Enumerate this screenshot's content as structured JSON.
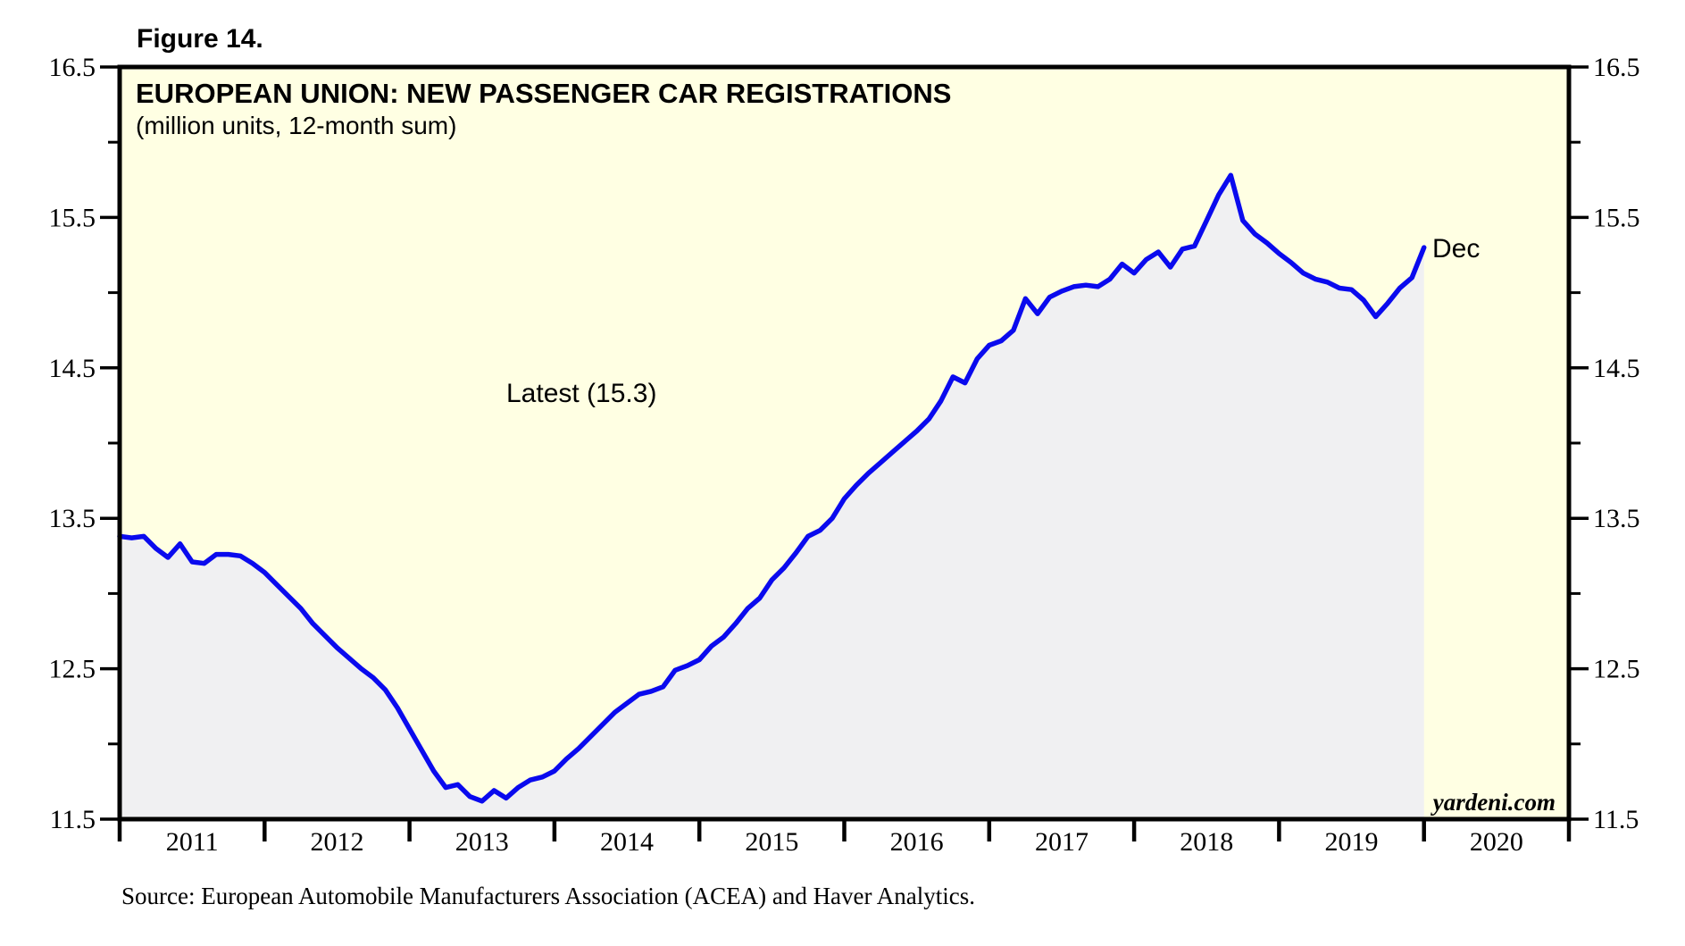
{
  "figure_label": "Figure 14.",
  "chart": {
    "title": "EUROPEAN UNION: NEW PASSENGER CAR REGISTRATIONS",
    "subtitle": "(million units, 12-month sum)",
    "latest_annotation": "Latest (15.3)",
    "endpoint_label": "Dec",
    "watermark": "yardeni.com"
  },
  "source_note": "Source: European Automobile Manufacturers Association (ACEA) and Haver Analytics.",
  "colors": {
    "page_background": "#FFFFFF",
    "above_line_fill": "#FFFFE3",
    "below_line_fill": "#F0F0F2",
    "line": "#0A0AEE",
    "axis": "#000000",
    "tick_label": "#000000",
    "endpoint_label_color": "#0A0AEE"
  },
  "chart_data": {
    "type": "area",
    "title": "EUROPEAN UNION: NEW PASSENGER CAR REGISTRATIONS",
    "series_name": "EU new passenger car registrations, 12-month sum (million units)",
    "first_point": "Dec 2010",
    "last_point": "Dec 2019",
    "latest_value": 15.3,
    "peak_value": 15.78,
    "trough_value": 11.62,
    "x_axis": {
      "start": 2011.0,
      "end": 2021.0,
      "year_labels": [
        "2011",
        "2012",
        "2013",
        "2014",
        "2015",
        "2016",
        "2017",
        "2018",
        "2019",
        "2020"
      ],
      "tick_interval_years": 1
    },
    "y_axis": {
      "min": 11.5,
      "max": 16.5,
      "major_ticks": [
        11.5,
        12.5,
        13.5,
        14.5,
        15.5,
        16.5
      ],
      "major_tick_labels": [
        "11.5",
        "12.5",
        "13.5",
        "14.5",
        "15.5",
        "16.5"
      ],
      "minor_ticks": [
        12.0,
        13.0,
        14.0,
        15.0,
        16.0
      ],
      "labels_on_both_sides": true
    },
    "grid": false,
    "legend": false,
    "monthly_values": [
      13.38,
      13.37,
      13.38,
      13.3,
      13.24,
      13.33,
      13.21,
      13.2,
      13.26,
      13.26,
      13.25,
      13.2,
      13.14,
      13.06,
      12.98,
      12.9,
      12.8,
      12.72,
      12.64,
      12.57,
      12.5,
      12.44,
      12.36,
      12.24,
      12.1,
      11.96,
      11.82,
      11.71,
      11.73,
      11.65,
      11.62,
      11.69,
      11.64,
      11.71,
      11.76,
      11.78,
      11.82,
      11.9,
      11.97,
      12.05,
      12.13,
      12.21,
      12.27,
      12.33,
      12.35,
      12.38,
      12.49,
      12.52,
      12.56,
      12.65,
      12.71,
      12.8,
      12.9,
      12.97,
      13.09,
      13.17,
      13.27,
      13.38,
      13.42,
      13.5,
      13.63,
      13.72,
      13.8,
      13.87,
      13.94,
      14.01,
      14.08,
      14.16,
      14.28,
      14.44,
      14.4,
      14.56,
      14.65,
      14.68,
      14.75,
      14.96,
      14.86,
      14.97,
      15.01,
      15.04,
      15.05,
      15.04,
      15.09,
      15.19,
      15.13,
      15.22,
      15.27,
      15.17,
      15.29,
      15.31,
      15.48,
      15.65,
      15.78,
      15.48,
      15.39,
      15.33,
      15.26,
      15.2,
      15.13,
      15.09,
      15.07,
      15.03,
      15.02,
      14.95,
      14.84,
      14.93,
      15.03,
      15.1,
      15.3
    ]
  }
}
